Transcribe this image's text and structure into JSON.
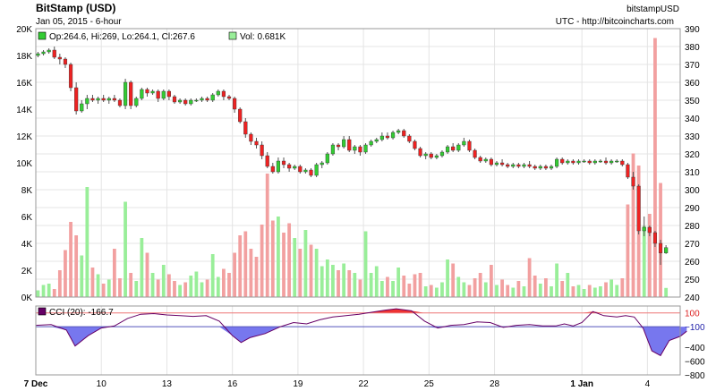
{
  "header": {
    "title": "BitStamp (USD)",
    "subtitle": "Jan 05, 2015 - 6-hour",
    "right_top": "bitstampUSD",
    "right_bottom": "UTC - http://bitcoincharts.com"
  },
  "legend": {
    "ohlc": "Op:264.6, Hi:269, Lo:264.1, Cl:267.6",
    "vol": "Vol: 0.681K",
    "cci": "CCI (20): -166.7"
  },
  "colors": {
    "up": "#33cc33",
    "down": "#ee2222",
    "vol_up": "#99ee99",
    "vol_down": "#f2a0a0",
    "cci_line": "#660066",
    "cci_fill": "#7777ee",
    "cci_hi_fill": "#ee3333",
    "grid": "#e4e4e4",
    "ref_line_hi": "#ee7777",
    "ref_line_lo": "#5555bb"
  },
  "chart_data": {
    "type": "candlestick",
    "price_axis": {
      "ticks": [
        240,
        250,
        260,
        270,
        280,
        290,
        300,
        310,
        320,
        330,
        340,
        350,
        360,
        370,
        380,
        390
      ]
    },
    "volume_axis": {
      "ticks": [
        "0K",
        "2K",
        "4K",
        "6K",
        "8K",
        "10K",
        "12K",
        "14K",
        "16K",
        "18K",
        "20K"
      ],
      "max_k": 20
    },
    "cci_axis": {
      "ticks": [
        100,
        -100,
        -400,
        -600,
        -800
      ],
      "ref_high": 100,
      "ref_low": -100
    },
    "x_ticks": [
      "7 Dec",
      "10",
      "13",
      "16",
      "19",
      "22",
      "25",
      "28",
      "1 Jan",
      "4"
    ],
    "x_tick_days": [
      0,
      3,
      6,
      9,
      12,
      15,
      18,
      21,
      25,
      28
    ],
    "day_range": [
      0,
      29.5
    ],
    "cci_series": [
      [
        0.0,
        -80
      ],
      [
        0.7,
        -70
      ],
      [
        1.4,
        -150
      ],
      [
        1.8,
        -380
      ],
      [
        2.4,
        -230
      ],
      [
        3.0,
        -120
      ],
      [
        3.6,
        -90
      ],
      [
        4.2,
        20
      ],
      [
        4.8,
        80
      ],
      [
        5.4,
        90
      ],
      [
        6.0,
        70
      ],
      [
        6.6,
        60
      ],
      [
        7.2,
        50
      ],
      [
        7.8,
        60
      ],
      [
        8.4,
        -20
      ],
      [
        9.0,
        -230
      ],
      [
        9.4,
        -330
      ],
      [
        9.8,
        -260
      ],
      [
        10.5,
        -200
      ],
      [
        11.2,
        -100
      ],
      [
        11.8,
        -40
      ],
      [
        12.4,
        -60
      ],
      [
        13.0,
        0
      ],
      [
        13.6,
        40
      ],
      [
        14.2,
        60
      ],
      [
        14.8,
        80
      ],
      [
        15.4,
        110
      ],
      [
        16.0,
        140
      ],
      [
        16.5,
        160
      ],
      [
        17.2,
        130
      ],
      [
        17.8,
        -20
      ],
      [
        18.4,
        -120
      ],
      [
        19.0,
        -80
      ],
      [
        19.6,
        -70
      ],
      [
        20.2,
        -30
      ],
      [
        20.8,
        -40
      ],
      [
        21.4,
        -110
      ],
      [
        22.0,
        -80
      ],
      [
        22.6,
        -70
      ],
      [
        23.2,
        -90
      ],
      [
        23.8,
        -90
      ],
      [
        24.2,
        -60
      ],
      [
        24.6,
        -90
      ],
      [
        25.0,
        -40
      ],
      [
        25.5,
        120
      ],
      [
        26.0,
        60
      ],
      [
        26.6,
        40
      ],
      [
        27.0,
        60
      ],
      [
        27.4,
        40
      ],
      [
        27.8,
        -120
      ],
      [
        28.2,
        -450
      ],
      [
        28.6,
        -520
      ],
      [
        29.0,
        -300
      ],
      [
        29.5,
        -240
      ],
      [
        29.8,
        -166.7
      ]
    ],
    "candles": [
      {
        "d": 0.1,
        "o": 375,
        "h": 377,
        "l": 374,
        "c": 376,
        "v": 0.5
      },
      {
        "d": 0.35,
        "o": 376,
        "h": 378,
        "l": 375,
        "c": 377,
        "v": 0.9
      },
      {
        "d": 0.6,
        "o": 377,
        "h": 379,
        "l": 376,
        "c": 378,
        "v": 1.0
      },
      {
        "d": 0.85,
        "o": 378,
        "h": 380,
        "l": 373,
        "c": 374,
        "v": 0.6
      },
      {
        "d": 1.1,
        "o": 374,
        "h": 376,
        "l": 370,
        "c": 373,
        "v": 2.0
      },
      {
        "d": 1.35,
        "o": 373,
        "h": 374,
        "l": 368,
        "c": 370,
        "v": 3.5
      },
      {
        "d": 1.6,
        "o": 370,
        "h": 371,
        "l": 355,
        "c": 357,
        "v": 5.6
      },
      {
        "d": 1.85,
        "o": 357,
        "h": 360,
        "l": 342,
        "c": 344,
        "v": 4.6
      },
      {
        "d": 2.1,
        "o": 344,
        "h": 350,
        "l": 343,
        "c": 348,
        "v": 3.1
      },
      {
        "d": 2.35,
        "o": 348,
        "h": 353,
        "l": 345,
        "c": 351,
        "v": 8.2
      },
      {
        "d": 2.6,
        "o": 351,
        "h": 353,
        "l": 349,
        "c": 350,
        "v": 2.2
      },
      {
        "d": 2.85,
        "o": 350,
        "h": 352,
        "l": 348,
        "c": 351,
        "v": 1.7
      },
      {
        "d": 3.1,
        "o": 351,
        "h": 353,
        "l": 349,
        "c": 350,
        "v": 1.0
      },
      {
        "d": 3.35,
        "o": 350,
        "h": 352,
        "l": 348,
        "c": 351,
        "v": 1.3
      },
      {
        "d": 3.6,
        "o": 351,
        "h": 353,
        "l": 349,
        "c": 350,
        "v": 3.6
      },
      {
        "d": 3.85,
        "o": 350,
        "h": 351,
        "l": 346,
        "c": 347,
        "v": 1.4
      },
      {
        "d": 4.1,
        "o": 347,
        "h": 362,
        "l": 345,
        "c": 360,
        "v": 7.1
      },
      {
        "d": 4.35,
        "o": 360,
        "h": 361,
        "l": 345,
        "c": 347,
        "v": 1.8
      },
      {
        "d": 4.6,
        "o": 347,
        "h": 352,
        "l": 346,
        "c": 351,
        "v": 1.2
      },
      {
        "d": 4.85,
        "o": 351,
        "h": 357,
        "l": 350,
        "c": 356,
        "v": 4.4
      },
      {
        "d": 5.1,
        "o": 356,
        "h": 357,
        "l": 352,
        "c": 354,
        "v": 3.3
      },
      {
        "d": 5.35,
        "o": 354,
        "h": 356,
        "l": 353,
        "c": 355,
        "v": 1.8
      },
      {
        "d": 5.6,
        "o": 355,
        "h": 356,
        "l": 349,
        "c": 351,
        "v": 1.3
      },
      {
        "d": 5.85,
        "o": 351,
        "h": 356,
        "l": 350,
        "c": 355,
        "v": 2.4
      },
      {
        "d": 6.1,
        "o": 355,
        "h": 356,
        "l": 350,
        "c": 352,
        "v": 1.7
      },
      {
        "d": 6.35,
        "o": 352,
        "h": 353,
        "l": 348,
        "c": 349,
        "v": 1.2
      },
      {
        "d": 6.6,
        "o": 349,
        "h": 351,
        "l": 348,
        "c": 350,
        "v": 0.9
      },
      {
        "d": 6.85,
        "o": 350,
        "h": 351,
        "l": 347,
        "c": 348,
        "v": 1.1
      },
      {
        "d": 7.1,
        "o": 348,
        "h": 351,
        "l": 347,
        "c": 350,
        "v": 1.6
      },
      {
        "d": 7.35,
        "o": 350,
        "h": 351,
        "l": 349,
        "c": 350,
        "v": 1.9
      },
      {
        "d": 7.6,
        "o": 350,
        "h": 352,
        "l": 349,
        "c": 351,
        "v": 1.1
      },
      {
        "d": 7.85,
        "o": 351,
        "h": 352,
        "l": 349,
        "c": 350,
        "v": 1.3
      },
      {
        "d": 8.1,
        "o": 350,
        "h": 354,
        "l": 349,
        "c": 353,
        "v": 3.2
      },
      {
        "d": 8.35,
        "o": 353,
        "h": 356,
        "l": 352,
        "c": 355,
        "v": 1.5
      },
      {
        "d": 8.6,
        "o": 355,
        "h": 356,
        "l": 350,
        "c": 352,
        "v": 2.1
      },
      {
        "d": 8.85,
        "o": 352,
        "h": 353,
        "l": 350,
        "c": 351,
        "v": 1.8
      },
      {
        "d": 9.1,
        "o": 351,
        "h": 352,
        "l": 343,
        "c": 345,
        "v": 3.3
      },
      {
        "d": 9.35,
        "o": 345,
        "h": 346,
        "l": 337,
        "c": 338,
        "v": 4.6
      },
      {
        "d": 9.6,
        "o": 338,
        "h": 340,
        "l": 329,
        "c": 331,
        "v": 4.9
      },
      {
        "d": 9.85,
        "o": 331,
        "h": 332,
        "l": 325,
        "c": 327,
        "v": 3.6
      },
      {
        "d": 10.1,
        "o": 327,
        "h": 329,
        "l": 323,
        "c": 325,
        "v": 3.0
      },
      {
        "d": 10.35,
        "o": 325,
        "h": 327,
        "l": 317,
        "c": 319,
        "v": 5.4
      },
      {
        "d": 10.6,
        "o": 319,
        "h": 321,
        "l": 312,
        "c": 313,
        "v": 9.2
      },
      {
        "d": 10.85,
        "o": 313,
        "h": 315,
        "l": 309,
        "c": 310,
        "v": 5.7
      },
      {
        "d": 11.1,
        "o": 310,
        "h": 318,
        "l": 309,
        "c": 316,
        "v": 6.0
      },
      {
        "d": 11.35,
        "o": 316,
        "h": 318,
        "l": 312,
        "c": 314,
        "v": 4.8
      },
      {
        "d": 11.6,
        "o": 314,
        "h": 315,
        "l": 310,
        "c": 312,
        "v": 5.5
      },
      {
        "d": 11.85,
        "o": 312,
        "h": 314,
        "l": 311,
        "c": 313,
        "v": 4.4
      },
      {
        "d": 12.1,
        "o": 313,
        "h": 314,
        "l": 309,
        "c": 310,
        "v": 3.6
      },
      {
        "d": 12.35,
        "o": 310,
        "h": 312,
        "l": 309,
        "c": 311,
        "v": 5.0
      },
      {
        "d": 12.6,
        "o": 311,
        "h": 312,
        "l": 307,
        "c": 308,
        "v": 3.9
      },
      {
        "d": 12.85,
        "o": 308,
        "h": 315,
        "l": 307,
        "c": 314,
        "v": 3.6
      },
      {
        "d": 13.1,
        "o": 314,
        "h": 316,
        "l": 312,
        "c": 315,
        "v": 2.3
      },
      {
        "d": 13.35,
        "o": 315,
        "h": 321,
        "l": 314,
        "c": 320,
        "v": 2.8
      },
      {
        "d": 13.6,
        "o": 320,
        "h": 326,
        "l": 319,
        "c": 325,
        "v": 2.4
      },
      {
        "d": 13.85,
        "o": 325,
        "h": 326,
        "l": 322,
        "c": 324,
        "v": 2.0
      },
      {
        "d": 14.1,
        "o": 324,
        "h": 330,
        "l": 323,
        "c": 328,
        "v": 2.5
      },
      {
        "d": 14.35,
        "o": 328,
        "h": 330,
        "l": 321,
        "c": 322,
        "v": 2.0
      },
      {
        "d": 14.6,
        "o": 322,
        "h": 325,
        "l": 320,
        "c": 324,
        "v": 1.8
      },
      {
        "d": 14.85,
        "o": 324,
        "h": 325,
        "l": 319,
        "c": 321,
        "v": 1.3
      },
      {
        "d": 15.1,
        "o": 321,
        "h": 326,
        "l": 320,
        "c": 325,
        "v": 4.9
      },
      {
        "d": 15.35,
        "o": 325,
        "h": 328,
        "l": 324,
        "c": 327,
        "v": 1.8
      },
      {
        "d": 15.6,
        "o": 327,
        "h": 329,
        "l": 326,
        "c": 328,
        "v": 2.3
      },
      {
        "d": 15.85,
        "o": 328,
        "h": 332,
        "l": 327,
        "c": 330,
        "v": 1.2
      },
      {
        "d": 16.1,
        "o": 330,
        "h": 332,
        "l": 328,
        "c": 329,
        "v": 1.5
      },
      {
        "d": 16.35,
        "o": 329,
        "h": 333,
        "l": 328,
        "c": 332,
        "v": 1.2
      },
      {
        "d": 16.6,
        "o": 332,
        "h": 334,
        "l": 331,
        "c": 333,
        "v": 2.2
      },
      {
        "d": 16.85,
        "o": 333,
        "h": 334,
        "l": 329,
        "c": 330,
        "v": 1.6
      },
      {
        "d": 17.1,
        "o": 330,
        "h": 331,
        "l": 326,
        "c": 327,
        "v": 1.0
      },
      {
        "d": 17.35,
        "o": 327,
        "h": 328,
        "l": 322,
        "c": 323,
        "v": 1.7
      },
      {
        "d": 17.6,
        "o": 323,
        "h": 324,
        "l": 318,
        "c": 319,
        "v": 1.8
      },
      {
        "d": 17.85,
        "o": 319,
        "h": 321,
        "l": 317,
        "c": 320,
        "v": 0.8
      },
      {
        "d": 18.1,
        "o": 320,
        "h": 321,
        "l": 317,
        "c": 318,
        "v": 0.9
      },
      {
        "d": 18.35,
        "o": 318,
        "h": 320,
        "l": 317,
        "c": 319,
        "v": 0.7
      },
      {
        "d": 18.6,
        "o": 319,
        "h": 322,
        "l": 318,
        "c": 321,
        "v": 1.1
      },
      {
        "d": 18.85,
        "o": 321,
        "h": 325,
        "l": 320,
        "c": 324,
        "v": 2.8
      },
      {
        "d": 19.1,
        "o": 324,
        "h": 326,
        "l": 321,
        "c": 322,
        "v": 2.5
      },
      {
        "d": 19.35,
        "o": 322,
        "h": 326,
        "l": 321,
        "c": 325,
        "v": 1.5
      },
      {
        "d": 19.6,
        "o": 325,
        "h": 329,
        "l": 324,
        "c": 327,
        "v": 1.1
      },
      {
        "d": 19.85,
        "o": 327,
        "h": 328,
        "l": 321,
        "c": 322,
        "v": 0.9
      },
      {
        "d": 20.1,
        "o": 322,
        "h": 323,
        "l": 317,
        "c": 318,
        "v": 1.4
      },
      {
        "d": 20.35,
        "o": 318,
        "h": 319,
        "l": 315,
        "c": 316,
        "v": 1.8
      },
      {
        "d": 20.6,
        "o": 316,
        "h": 318,
        "l": 315,
        "c": 317,
        "v": 1.1
      },
      {
        "d": 20.85,
        "o": 317,
        "h": 318,
        "l": 313,
        "c": 314,
        "v": 2.4
      },
      {
        "d": 21.1,
        "o": 314,
        "h": 316,
        "l": 313,
        "c": 315,
        "v": 0.9
      },
      {
        "d": 21.35,
        "o": 315,
        "h": 317,
        "l": 313,
        "c": 314,
        "v": 1.3
      },
      {
        "d": 21.6,
        "o": 314,
        "h": 315,
        "l": 312,
        "c": 313,
        "v": 0.9
      },
      {
        "d": 21.85,
        "o": 313,
        "h": 315,
        "l": 312,
        "c": 314,
        "v": 0.7
      },
      {
        "d": 22.1,
        "o": 314,
        "h": 315,
        "l": 312,
        "c": 313,
        "v": 1.2
      },
      {
        "d": 22.35,
        "o": 313,
        "h": 315,
        "l": 312,
        "c": 314,
        "v": 0.8
      },
      {
        "d": 22.6,
        "o": 314,
        "h": 316,
        "l": 312,
        "c": 313,
        "v": 2.9
      },
      {
        "d": 22.85,
        "o": 313,
        "h": 314,
        "l": 311,
        "c": 312,
        "v": 1.6
      },
      {
        "d": 23.1,
        "o": 312,
        "h": 314,
        "l": 311,
        "c": 313,
        "v": 1.0
      },
      {
        "d": 23.35,
        "o": 313,
        "h": 314,
        "l": 311,
        "c": 312,
        "v": 1.4
      },
      {
        "d": 23.6,
        "o": 312,
        "h": 314,
        "l": 311,
        "c": 313,
        "v": 0.8
      },
      {
        "d": 23.85,
        "o": 313,
        "h": 318,
        "l": 312,
        "c": 317,
        "v": 2.5
      },
      {
        "d": 24.1,
        "o": 317,
        "h": 318,
        "l": 314,
        "c": 315,
        "v": 1.2
      },
      {
        "d": 24.35,
        "o": 315,
        "h": 317,
        "l": 314,
        "c": 316,
        "v": 1.8
      },
      {
        "d": 24.6,
        "o": 316,
        "h": 317,
        "l": 314,
        "c": 315,
        "v": 0.8
      },
      {
        "d": 24.85,
        "o": 315,
        "h": 317,
        "l": 314,
        "c": 316,
        "v": 0.9
      },
      {
        "d": 25.1,
        "o": 316,
        "h": 317,
        "l": 315,
        "c": 316,
        "v": 0.6
      },
      {
        "d": 25.35,
        "o": 316,
        "h": 317,
        "l": 314,
        "c": 315,
        "v": 0.9
      },
      {
        "d": 25.6,
        "o": 315,
        "h": 317,
        "l": 314,
        "c": 316,
        "v": 0.7
      },
      {
        "d": 25.85,
        "o": 316,
        "h": 317,
        "l": 315,
        "c": 316,
        "v": 0.8
      },
      {
        "d": 26.1,
        "o": 316,
        "h": 318,
        "l": 314,
        "c": 315,
        "v": 1.1
      },
      {
        "d": 26.35,
        "o": 315,
        "h": 317,
        "l": 314,
        "c": 316,
        "v": 1.3
      },
      {
        "d": 26.6,
        "o": 316,
        "h": 317,
        "l": 315,
        "c": 316,
        "v": 0.9
      },
      {
        "d": 26.85,
        "o": 316,
        "h": 317,
        "l": 313,
        "c": 314,
        "v": 1.4
      },
      {
        "d": 27.1,
        "o": 314,
        "h": 315,
        "l": 306,
        "c": 307,
        "v": 6.9
      },
      {
        "d": 27.35,
        "o": 307,
        "h": 310,
        "l": 300,
        "c": 302,
        "v": 10.7
      },
      {
        "d": 27.6,
        "o": 302,
        "h": 303,
        "l": 275,
        "c": 277,
        "v": 9.8
      },
      {
        "d": 27.85,
        "o": 277,
        "h": 285,
        "l": 274,
        "c": 279,
        "v": 5.3
      },
      {
        "d": 28.1,
        "o": 279,
        "h": 280,
        "l": 274,
        "c": 276,
        "v": 6.2
      },
      {
        "d": 28.35,
        "o": 276,
        "h": 277,
        "l": 268,
        "c": 270,
        "v": 19.3
      },
      {
        "d": 28.6,
        "o": 270,
        "h": 272,
        "l": 258,
        "c": 264.6,
        "v": 8.5
      },
      {
        "d": 28.85,
        "o": 264.6,
        "h": 269,
        "l": 264.1,
        "c": 267.6,
        "v": 0.681
      }
    ]
  }
}
